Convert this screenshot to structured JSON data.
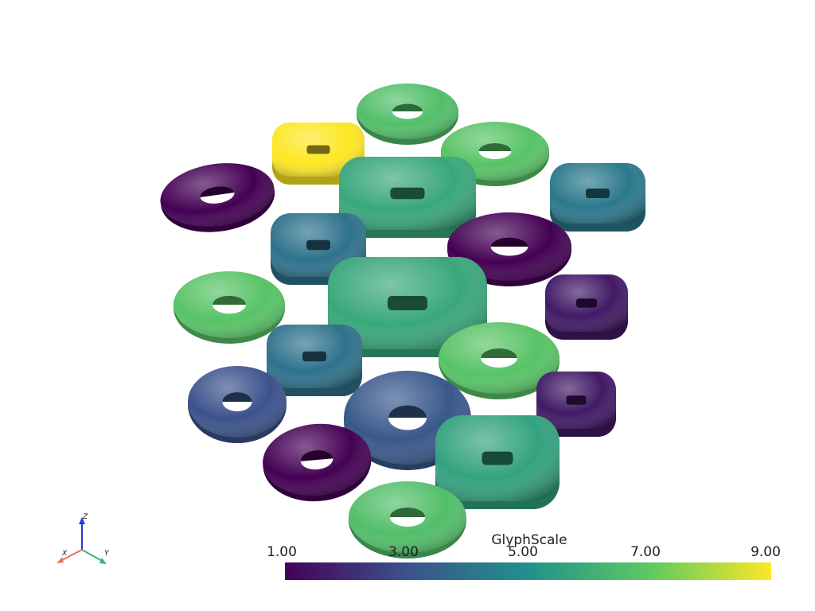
{
  "scalar_bar": {
    "title": "GlyphScale",
    "ticks": [
      "1.00",
      "3.00",
      "5.00",
      "7.00",
      "9.00"
    ],
    "range": [
      1.0,
      9.0
    ],
    "colormap": [
      "#440154",
      "#3b528b",
      "#21918c",
      "#5ec962",
      "#fde725"
    ]
  },
  "orientation_axes": {
    "x": "X",
    "y": "Y",
    "z": "Z",
    "x_color": "#e8735a",
    "y_color": "#3cb371",
    "z_color": "#1f3fd8"
  },
  "glyphs": [
    {
      "shape": "torus",
      "scale": 6.6
    },
    {
      "shape": "square-torus",
      "scale": 9.0
    },
    {
      "shape": "torus",
      "scale": 6.8
    },
    {
      "shape": "torus",
      "scale": 1.0
    },
    {
      "shape": "square-torus",
      "scale": 4.2
    },
    {
      "shape": "square-torus",
      "scale": 5.8
    },
    {
      "shape": "square-torus",
      "scale": 4.0
    },
    {
      "shape": "torus",
      "scale": 1.0
    },
    {
      "shape": "torus",
      "scale": 6.8
    },
    {
      "shape": "square-torus",
      "scale": 5.8
    },
    {
      "shape": "square-torus",
      "scale": 1.6
    },
    {
      "shape": "square-torus",
      "scale": 4.0
    },
    {
      "shape": "torus",
      "scale": 6.8
    },
    {
      "shape": "torus",
      "scale": 3.0
    },
    {
      "shape": "torus",
      "scale": 3.2
    },
    {
      "shape": "square-torus",
      "scale": 1.6
    },
    {
      "shape": "torus",
      "scale": 1.0
    },
    {
      "shape": "square-torus",
      "scale": 5.6
    },
    {
      "shape": "torus",
      "scale": 6.6
    }
  ]
}
